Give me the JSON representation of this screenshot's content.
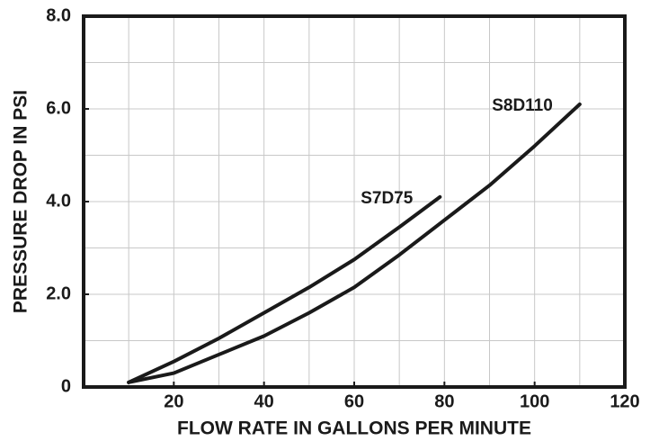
{
  "chart_data": {
    "type": "line",
    "xlabel": "FLOW RATE IN GALLONS PER MINUTE",
    "ylabel": "PRESSURE DROP IN PSI",
    "xlim": [
      0,
      120
    ],
    "ylim": [
      0,
      8
    ],
    "xticks": [
      20,
      40,
      60,
      80,
      100,
      120
    ],
    "yticks": [
      0,
      {
        "value": 2,
        "label": "2.0"
      },
      {
        "value": 4,
        "label": "4.0"
      },
      {
        "value": 6,
        "label": "6.0"
      },
      {
        "value": 8,
        "label": "8.0"
      }
    ],
    "xgrid": [
      10,
      20,
      30,
      40,
      50,
      60,
      70,
      80,
      90,
      100,
      110
    ],
    "ygrid": [
      1,
      2,
      3,
      4,
      5,
      6,
      7
    ],
    "grid": true,
    "series": [
      {
        "name": "S7D75",
        "color": "#1a1a1a",
        "x": [
          10,
          20,
          30,
          40,
          50,
          60,
          70,
          79
        ],
        "values": [
          0.1,
          0.55,
          1.05,
          1.6,
          2.15,
          2.75,
          3.45,
          4.1
        ]
      },
      {
        "name": "S8D110",
        "color": "#1a1a1a",
        "x": [
          10,
          20,
          30,
          40,
          50,
          60,
          70,
          80,
          90,
          100,
          110
        ],
        "values": [
          0.1,
          0.3,
          0.7,
          1.1,
          1.6,
          2.15,
          2.85,
          3.6,
          4.35,
          5.2,
          6.1
        ]
      }
    ]
  }
}
